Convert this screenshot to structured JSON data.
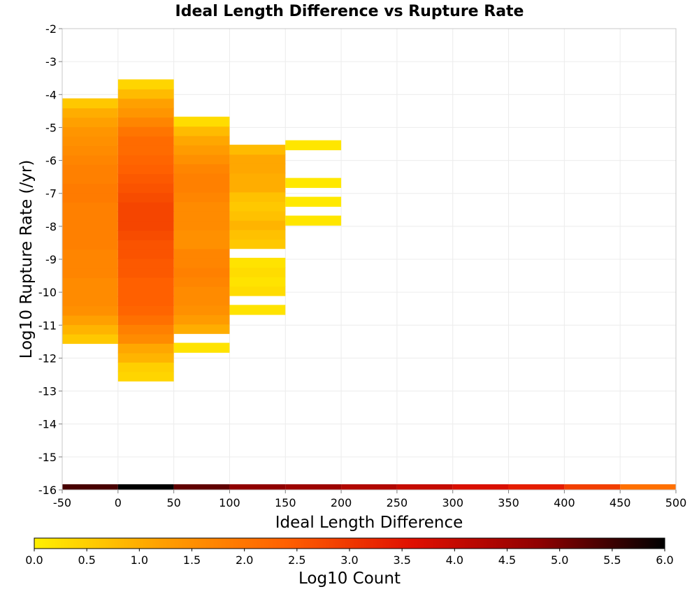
{
  "chart_data": {
    "type": "heatmap",
    "title": "Ideal Length Difference vs Rupture Rate",
    "xlabel": "Ideal Length Difference",
    "ylabel": "Log10 Rupture Rate (/yr)",
    "xlim": [
      -50,
      500
    ],
    "ylim": [
      -16,
      -2
    ],
    "x_ticks": [
      -50,
      0,
      50,
      100,
      150,
      200,
      250,
      300,
      350,
      400,
      450,
      500
    ],
    "y_ticks": [
      -2,
      -3,
      -4,
      -5,
      -6,
      -7,
      -8,
      -9,
      -10,
      -11,
      -12,
      -13,
      -14,
      -15,
      -16
    ],
    "grid": true,
    "colorbar": {
      "label": "Log10 Count",
      "range": [
        0,
        6
      ],
      "ticks": [
        "0.0",
        "0.5",
        "1.0",
        "1.5",
        "2.0",
        "2.5",
        "3.0",
        "3.5",
        "4.0",
        "4.5",
        "5.0",
        "5.5",
        "6.0"
      ],
      "colors": [
        "#fff000",
        "#ffa000",
        "#ff6000",
        "#e01000",
        "#900000",
        "#000000"
      ]
    },
    "y_bin_width": 0.286,
    "columns": [
      {
        "x0": -50,
        "x1": 0,
        "y_start": -11.56,
        "values": [
          0.6,
          0.9,
          1.2,
          1.5,
          1.6,
          1.6,
          1.6,
          1.7,
          1.7,
          1.7,
          1.8,
          1.8,
          1.8,
          1.8,
          1.8,
          1.9,
          1.9,
          1.8,
          1.8,
          1.7,
          1.6,
          1.5,
          1.4,
          1.2,
          1.0,
          0.6
        ]
      },
      {
        "x0": 0,
        "x1": 50,
        "y_start": -12.7,
        "values": [
          0.4,
          0.5,
          0.9,
          1.1,
          1.6,
          1.8,
          2.1,
          2.3,
          2.4,
          2.4,
          2.4,
          2.5,
          2.5,
          2.6,
          2.6,
          2.7,
          2.8,
          2.8,
          2.8,
          2.7,
          2.6,
          2.5,
          2.4,
          2.3,
          2.2,
          2.2,
          2.0,
          1.7,
          1.4,
          1.2,
          0.8,
          0.4
        ]
      },
      {
        "x0": 50,
        "x1": 100,
        "y_start": -11.83,
        "values": [
          0.2,
          null,
          1.0,
          1.3,
          1.5,
          1.6,
          1.6,
          1.7,
          1.8,
          1.7,
          1.7,
          1.5,
          1.5,
          1.6,
          1.6,
          1.6,
          1.7,
          1.8,
          1.8,
          1.7,
          1.5,
          1.3,
          1.1,
          0.8,
          0.3
        ]
      },
      {
        "x0": 100,
        "x1": 150,
        "y_start": -10.68,
        "values": [
          0.2,
          null,
          0.3,
          0.2,
          0.3,
          0.2,
          null,
          0.6,
          0.7,
          0.9,
          0.7,
          0.6,
          0.7,
          1.0,
          1.0,
          1.1,
          1.1,
          0.8
        ]
      },
      {
        "x0": 150,
        "x1": 200,
        "y_start": -7.97,
        "values": [
          0.15,
          null,
          0.1,
          null,
          0.12,
          null,
          null,
          null,
          0.15
        ]
      }
    ],
    "bottom_strip": [
      {
        "x0": -50,
        "x1": 0,
        "value": 5.4
      },
      {
        "x0": 0,
        "x1": 50,
        "value": 6.0
      },
      {
        "x0": 50,
        "x1": 100,
        "value": 5.2
      },
      {
        "x0": 100,
        "x1": 150,
        "value": 4.8
      },
      {
        "x0": 150,
        "x1": 200,
        "value": 4.6
      },
      {
        "x0": 200,
        "x1": 250,
        "value": 4.3
      },
      {
        "x0": 250,
        "x1": 300,
        "value": 4.0
      },
      {
        "x0": 300,
        "x1": 350,
        "value": 3.7
      },
      {
        "x0": 350,
        "x1": 400,
        "value": 3.4
      },
      {
        "x0": 400,
        "x1": 450,
        "value": 2.9
      },
      {
        "x0": 450,
        "x1": 500,
        "value": 2.1
      }
    ]
  }
}
